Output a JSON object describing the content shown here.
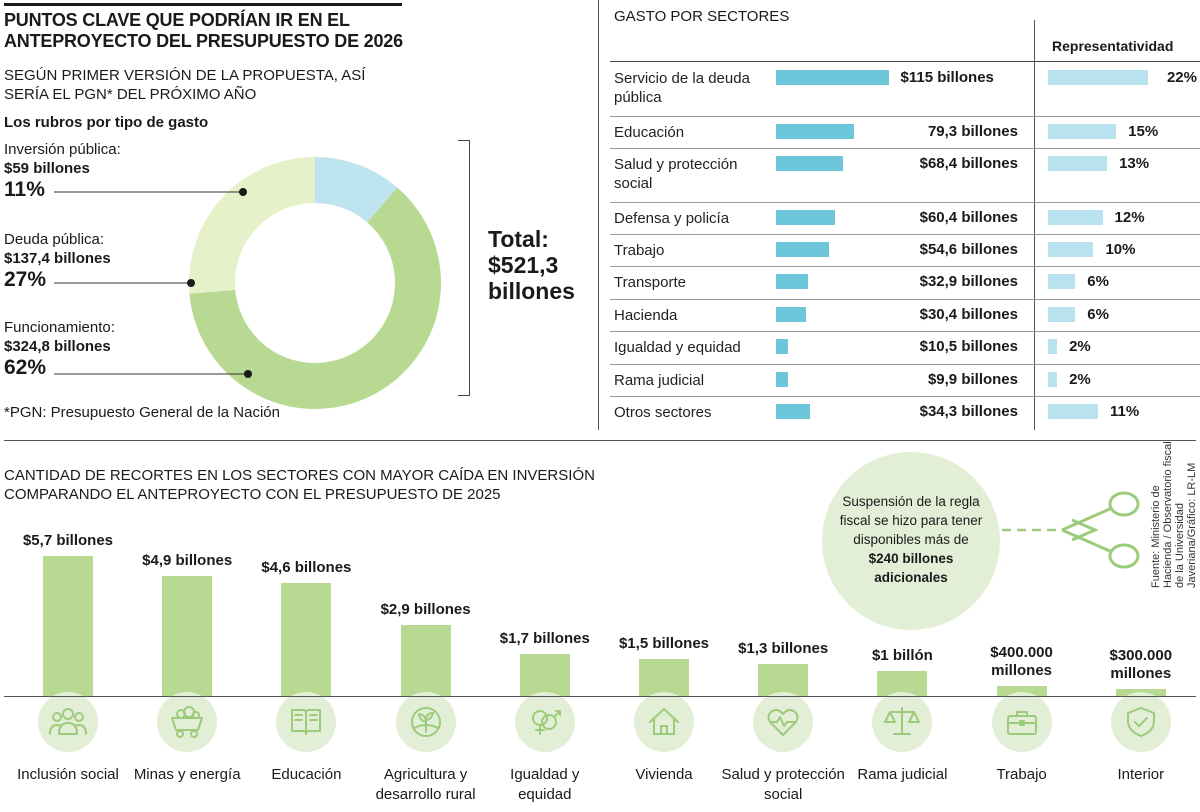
{
  "header": {
    "title": "PUNTOS CLAVE QUE PODRÍAN IR EN EL ANTEPROYECTO DEL PRESUPUESTO DE 2026",
    "subtitle": "SEGÚN PRIMER VERSIÓN DE LA PROPUESTA, ASÍ SERÍA EL PGN* DEL PRÓXIMO AÑO",
    "footnote": "*PGN: Presupuesto General de la Nación"
  },
  "donut": {
    "heading": "Los rubros por tipo de gasto",
    "total_label": "Total:",
    "total_value": "$521,3 billones",
    "segments": [
      {
        "label": "Inversión pública:",
        "value": "$59 billones",
        "pct": "11%",
        "color": "#bde4ef"
      },
      {
        "label": "Deuda pública:",
        "value": "$137,4 billones",
        "pct": "27%",
        "color": "#e6f1c9"
      },
      {
        "label": "Funcionamiento:",
        "value": "$324,8 billones",
        "pct": "62%",
        "color": "#b8d991"
      }
    ]
  },
  "sectors": {
    "title": "GASTO POR SECTORES",
    "rep_header": "Representatividad",
    "bar_color": "#6dc6d9",
    "rep_color": "#b9e3ef",
    "rows": [
      {
        "name": "Servicio de la deuda pública",
        "value": 115,
        "label": "$115 billones",
        "rep": 22,
        "rep_label": "22%"
      },
      {
        "name": "Educación",
        "value": 79.3,
        "label": "79,3 billones",
        "rep": 15,
        "rep_label": "15%"
      },
      {
        "name": "Salud y protección social",
        "value": 68.4,
        "label": "$68,4 billones",
        "rep": 13,
        "rep_label": "13%"
      },
      {
        "name": "Defensa y policía",
        "value": 60.4,
        "label": "$60,4 billones",
        "rep": 12,
        "rep_label": "12%"
      },
      {
        "name": "Trabajo",
        "value": 54.6,
        "label": "$54,6 billones",
        "rep": 10,
        "rep_label": "10%"
      },
      {
        "name": "Transporte",
        "value": 32.9,
        "label": "$32,9 billones",
        "rep": 6,
        "rep_label": "6%"
      },
      {
        "name": "Hacienda",
        "value": 30.4,
        "label": "$30,4 billones",
        "rep": 6,
        "rep_label": "6%"
      },
      {
        "name": "Igualdad y equidad",
        "value": 10.5,
        "label": "$10,5 billones",
        "rep": 2,
        "rep_label": "2%"
      },
      {
        "name": "Rama judicial",
        "value": 9.9,
        "label": "$9,9 billones",
        "rep": 2,
        "rep_label": "2%"
      },
      {
        "name": "Otros sectores",
        "value": 34.3,
        "label": "$34,3 billones",
        "rep": 11,
        "rep_label": "11%"
      }
    ]
  },
  "cuts": {
    "title": "CANTIDAD DE RECORTES EN LOS SECTORES CON MAYOR CAÍDA EN INVERSIÓN COMPARANDO EL ANTEPROYECTO CON EL PRESUPUESTO DE 2025",
    "bar_color": "#b8d991",
    "items": [
      {
        "category": "Inclusión social",
        "value": 5.7,
        "label": "$5,7 billones",
        "icon": "people-icon"
      },
      {
        "category": "Minas y energía",
        "value": 4.9,
        "label": "$4,9 billones",
        "icon": "mining-cart-icon"
      },
      {
        "category": "Educación",
        "value": 4.6,
        "label": "$4,6 billones",
        "icon": "book-icon"
      },
      {
        "category": "Agricultura y desarrollo rural",
        "value": 2.9,
        "label": "$2,9 billones",
        "icon": "sprout-icon"
      },
      {
        "category": "Igualdad y equidad",
        "value": 1.7,
        "label": "$1,7 billones",
        "icon": "gender-equality-icon"
      },
      {
        "category": "Vivienda",
        "value": 1.5,
        "label": "$1,5 billones",
        "icon": "house-icon"
      },
      {
        "category": "Salud y protección social",
        "value": 1.3,
        "label": "$1,3 billones",
        "icon": "heart-pulse-icon"
      },
      {
        "category": "Rama judicial",
        "value": 1.0,
        "label": "$1 billón",
        "icon": "scales-icon"
      },
      {
        "category": "Trabajo",
        "value": 0.4,
        "label": "$400.000 millones",
        "icon": "briefcase-icon"
      },
      {
        "category": "Interior",
        "value": 0.3,
        "label": "$300.000 millones",
        "icon": "shield-check-icon"
      }
    ]
  },
  "note": {
    "text_before": "Suspensión de la regla fiscal se hizo para tener disponibles más de ",
    "amount": "$240",
    "text_after": " billones adicionales",
    "icon": "scissors-icon"
  },
  "source": "Fuente: Ministerio de Hacienda / Observatorio fiscal de la Universidad Javeriana/Gráfico: LR-LM",
  "chart_data": [
    {
      "type": "pie",
      "title": "Los rubros por tipo de gasto",
      "categories": [
        "Inversión pública",
        "Deuda pública",
        "Funcionamiento"
      ],
      "values": [
        59,
        137.4,
        324.8
      ],
      "percentages": [
        11,
        27,
        62
      ],
      "total": 521.3,
      "unit": "billones"
    },
    {
      "type": "bar",
      "title": "GASTO POR SECTORES",
      "categories": [
        "Servicio de la deuda pública",
        "Educación",
        "Salud y protección social",
        "Defensa y policía",
        "Trabajo",
        "Transporte",
        "Hacienda",
        "Igualdad y equidad",
        "Rama judicial",
        "Otros sectores"
      ],
      "series": [
        {
          "name": "",
          "values": [
            115,
            79.3,
            68.4,
            60.4,
            54.6,
            32.9,
            30.4,
            10.5,
            9.9,
            34.3
          ]
        },
        {
          "name": "Representatividad",
          "values": [
            22,
            15,
            13,
            12,
            10,
            6,
            6,
            2,
            2,
            11
          ]
        }
      ],
      "orientation": "horizontal"
    },
    {
      "type": "bar",
      "title": "CANTIDAD DE RECORTES EN LOS SECTORES CON MAYOR CAÍDA EN INVERSIÓN COMPARANDO EL ANTEPROYECTO CON EL PRESUPUESTO DE 2025",
      "categories": [
        "Inclusión social",
        "Minas y energía",
        "Educación",
        "Agricultura y desarrollo rural",
        "Igualdad y equidad",
        "Vivienda",
        "Salud y protección social",
        "Rama judicial",
        "Trabajo",
        "Interior"
      ],
      "values": [
        5.7,
        4.9,
        4.6,
        2.9,
        1.7,
        1.5,
        1.3,
        1.0,
        0.4,
        0.3
      ],
      "unit": "billones"
    }
  ]
}
